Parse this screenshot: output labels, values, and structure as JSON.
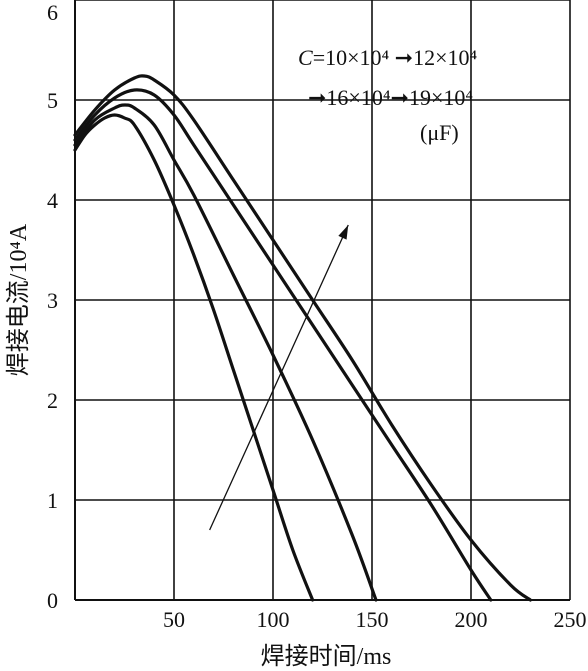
{
  "chart_data": {
    "type": "line",
    "title": "",
    "xlabel": "焊接时间/ms",
    "ylabel": "焊接电流/10⁴A",
    "xlim": [
      0,
      250
    ],
    "ylim": [
      0,
      6
    ],
    "xticks": [
      50,
      100,
      150,
      200,
      250
    ],
    "yticks": [
      0,
      1,
      2,
      3,
      4,
      5,
      6
    ],
    "x_tick_labels": [
      "50",
      "100",
      "150",
      "200",
      "250"
    ],
    "y_tick_labels": [
      "0",
      "1",
      "2",
      "3",
      "4",
      "5",
      "6"
    ],
    "grid": true,
    "series": [
      {
        "capacitance": "10×10⁴",
        "x": [
          0,
          5,
          10,
          15,
          20,
          25,
          30,
          40,
          50,
          60,
          70,
          80,
          90,
          100,
          110,
          120
        ],
        "y": [
          4.5,
          4.65,
          4.75,
          4.82,
          4.85,
          4.82,
          4.75,
          4.4,
          3.95,
          3.45,
          2.9,
          2.3,
          1.7,
          1.1,
          0.5,
          0.0
        ]
      },
      {
        "capacitance": "12×10⁴",
        "x": [
          0,
          10,
          20,
          25,
          30,
          40,
          50,
          60,
          80,
          100,
          120,
          140,
          152
        ],
        "y": [
          4.55,
          4.8,
          4.92,
          4.95,
          4.92,
          4.75,
          4.4,
          4.05,
          3.25,
          2.45,
          1.6,
          0.65,
          0.0
        ]
      },
      {
        "capacitance": "16×10⁴",
        "x": [
          0,
          10,
          20,
          30,
          40,
          50,
          60,
          80,
          100,
          120,
          140,
          160,
          180,
          200,
          210
        ],
        "y": [
          4.6,
          4.85,
          5.02,
          5.1,
          5.05,
          4.85,
          4.55,
          3.95,
          3.35,
          2.75,
          2.15,
          1.55,
          0.95,
          0.3,
          0.0
        ]
      },
      {
        "capacitance": "19×10⁴",
        "x": [
          0,
          10,
          20,
          30,
          35,
          40,
          50,
          60,
          80,
          100,
          120,
          140,
          160,
          180,
          200,
          220,
          230
        ],
        "y": [
          4.65,
          4.9,
          5.1,
          5.22,
          5.24,
          5.2,
          5.05,
          4.8,
          4.2,
          3.6,
          3.0,
          2.4,
          1.75,
          1.15,
          0.6,
          0.15,
          0.0
        ]
      }
    ],
    "arrow": {
      "from": [
        68,
        0.7
      ],
      "to": [
        138,
        3.75
      ]
    },
    "annotation": {
      "line1_prefix": "C",
      "line1_rest": "=10×10⁴ ➞12×10⁴",
      "line2": "➞16×10⁴➞19×10⁴",
      "line3": "(μF)"
    },
    "line_color": "#111111",
    "grid_color": "#111111"
  }
}
